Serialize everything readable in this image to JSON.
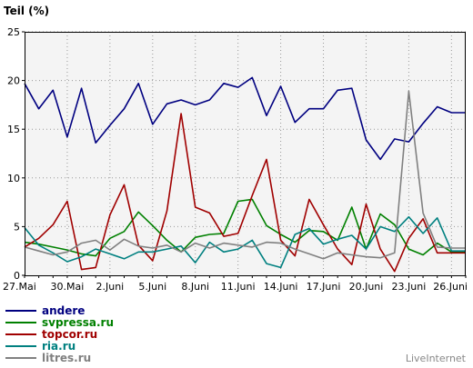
{
  "chart_data": {
    "type": "line",
    "ylabel": "Teil (%)",
    "ylim": [
      0,
      25
    ],
    "yticks": [
      0,
      5,
      10,
      15,
      20,
      25
    ],
    "grid": true,
    "x_tick_labels": [
      "27.Mai",
      "30.Mai",
      "2.Juni",
      "5.Juni",
      "8.Juni",
      "11.Juni",
      "14.Juni",
      "17.Juni",
      "20.Juni",
      "23.Juni",
      "26.Juni"
    ],
    "x": [
      "27.Mai",
      "28.Mai",
      "29.Mai",
      "30.Mai",
      "31.Mai",
      "1.Juni",
      "2.Juni",
      "3.Juni",
      "4.Juni",
      "5.Juni",
      "6.Juni",
      "7.Juni",
      "8.Juni",
      "9.Juni",
      "10.Juni",
      "11.Juni",
      "12.Juni",
      "13.Juni",
      "14.Juni",
      "15.Juni",
      "16.Juni",
      "17.Juni",
      "18.Juni",
      "19.Juni",
      "20.Juni",
      "21.Juni",
      "22.Juni",
      "23.Juni",
      "24.Juni",
      "25.Juni",
      "26.Juni",
      "27.Juni"
    ],
    "legend_position": "bottom-left",
    "series": [
      {
        "name": "andere",
        "color": "#000080",
        "values": [
          19.7,
          17.1,
          19.0,
          14.2,
          19.2,
          13.6,
          15.4,
          17.1,
          19.7,
          15.5,
          17.6,
          18.0,
          17.5,
          18.0,
          19.7,
          19.3,
          20.3,
          16.4,
          19.4,
          15.7,
          17.1,
          17.1,
          19.0,
          19.2,
          13.9,
          11.9,
          14.0,
          13.7,
          15.6,
          17.3,
          16.7,
          16.7
        ]
      },
      {
        "name": "svpressa.ru",
        "color": "#008000",
        "values": [
          3.4,
          3.2,
          2.9,
          2.6,
          2.2,
          2.0,
          3.8,
          4.5,
          6.5,
          5.1,
          3.6,
          2.4,
          3.9,
          4.2,
          4.3,
          7.6,
          7.8,
          5.1,
          4.2,
          3.4,
          4.6,
          4.5,
          3.6,
          7.0,
          2.7,
          6.3,
          5.2,
          2.7,
          2.1,
          3.3,
          2.4,
          2.4
        ]
      },
      {
        "name": "topcor.ru",
        "color": "#a00000",
        "values": [
          2.9,
          3.8,
          5.2,
          7.6,
          0.6,
          0.8,
          6.2,
          9.3,
          3.1,
          1.5,
          6.6,
          16.6,
          7.0,
          6.4,
          4.0,
          4.3,
          8.2,
          11.9,
          3.6,
          2.0,
          7.8,
          5.2,
          2.7,
          1.1,
          7.3,
          2.7,
          0.4,
          3.8,
          5.8,
          2.3,
          2.3,
          2.3
        ]
      },
      {
        "name": "ria.ru",
        "color": "#008080",
        "values": [
          4.9,
          3.1,
          2.3,
          1.4,
          1.9,
          2.7,
          2.2,
          1.7,
          2.4,
          2.4,
          2.7,
          3.0,
          1.3,
          3.4,
          2.4,
          2.7,
          3.6,
          1.2,
          0.8,
          4.2,
          4.8,
          3.2,
          3.7,
          4.1,
          2.7,
          5.0,
          4.5,
          6.0,
          4.3,
          5.9,
          2.5,
          2.5
        ]
      },
      {
        "name": "litres.ru",
        "color": "#808080",
        "values": [
          2.9,
          2.5,
          2.1,
          2.4,
          3.3,
          3.6,
          2.6,
          3.7,
          3.0,
          2.8,
          3.1,
          2.4,
          3.3,
          2.8,
          3.3,
          3.1,
          2.9,
          3.4,
          3.3,
          2.7,
          2.2,
          1.7,
          2.3,
          2.1,
          1.9,
          1.8,
          2.3,
          18.9,
          6.4,
          2.9,
          2.8,
          2.8
        ]
      }
    ]
  },
  "branding": {
    "text": "LiveInternet"
  }
}
